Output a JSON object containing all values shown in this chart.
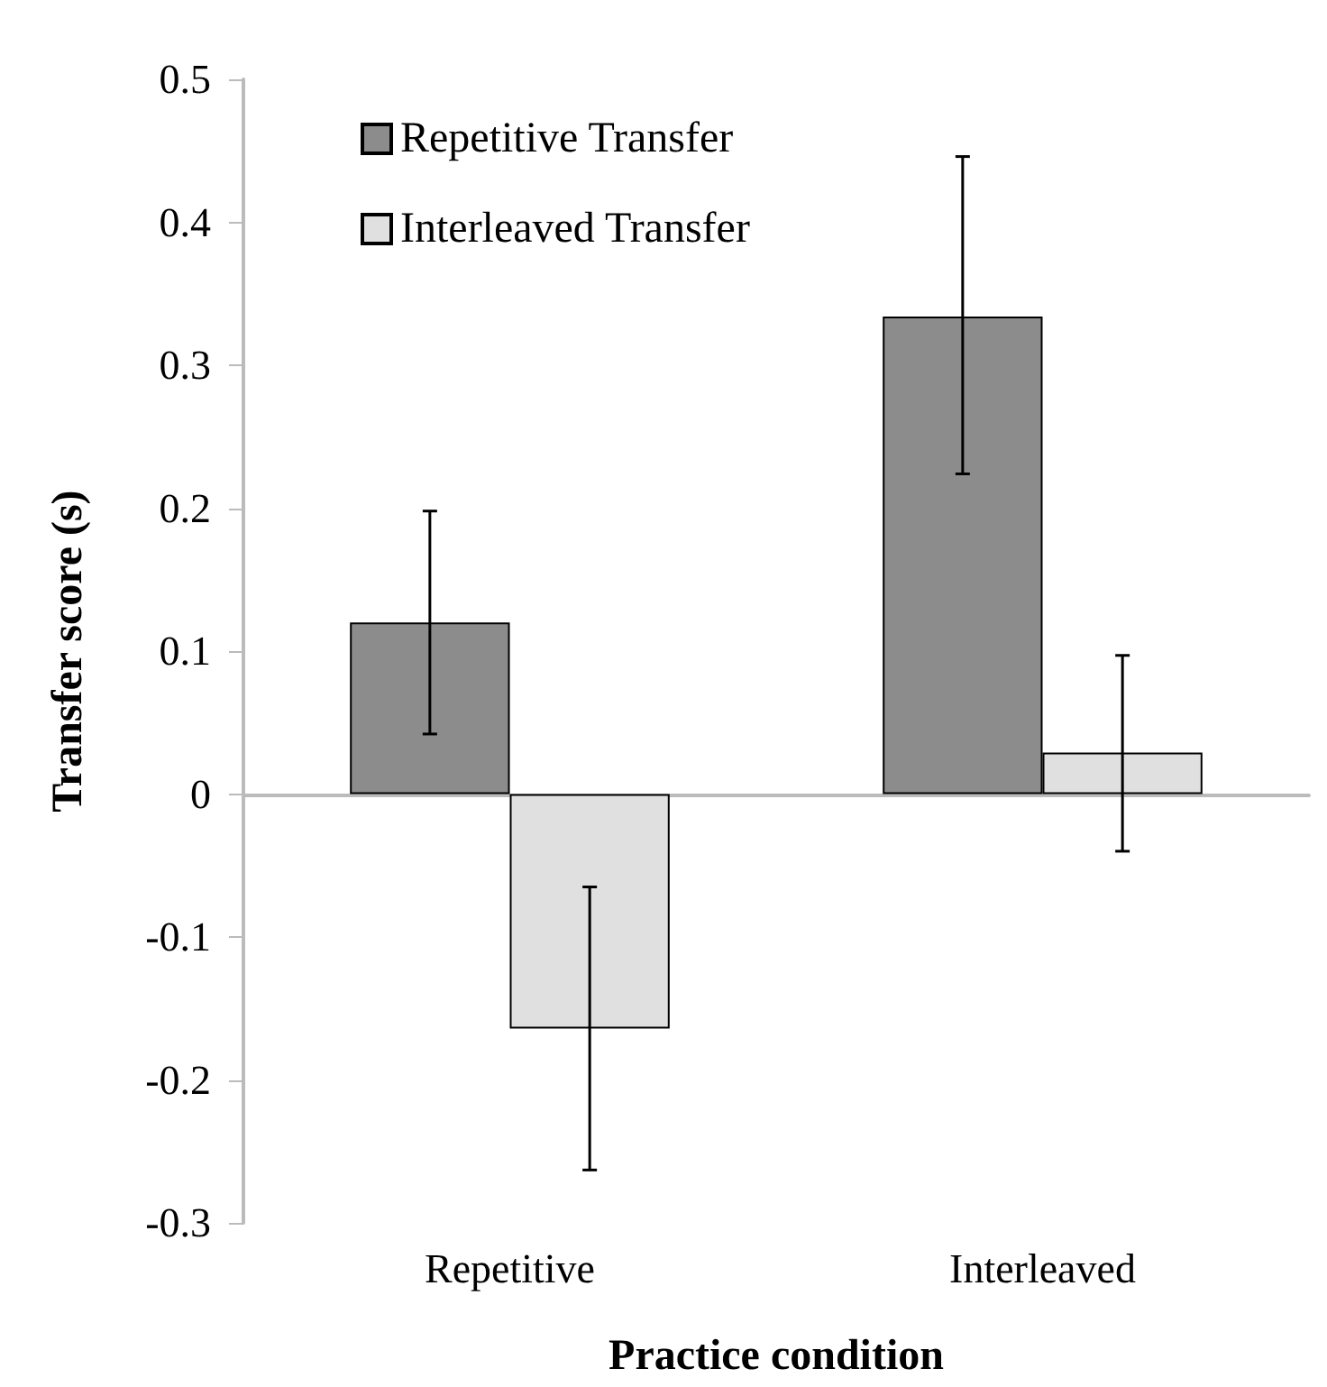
{
  "chart_data": {
    "type": "bar",
    "xlabel": "Practice condition",
    "ylabel": "Transfer score (s)",
    "categories": [
      "Repetitive",
      "Interleaved"
    ],
    "series": [
      {
        "name": "Repetitive Transfer",
        "color": "#8c8c8c",
        "values": [
          0.12,
          0.334
        ],
        "errors": [
          [
            0.042,
            0.198
          ],
          [
            0.224,
            0.446
          ]
        ]
      },
      {
        "name": "Interleaved Transfer",
        "color": "#e0e0e0",
        "values": [
          -0.164,
          0.029
        ],
        "errors": [
          [
            -0.263,
            -0.065
          ],
          [
            -0.04,
            0.097
          ]
        ]
      }
    ],
    "ylim": [
      -0.3,
      0.5
    ],
    "yticks": [
      -0.3,
      -0.2,
      -0.1,
      0,
      0.1,
      0.2,
      0.3,
      0.4,
      0.5
    ],
    "legend": "top left"
  }
}
